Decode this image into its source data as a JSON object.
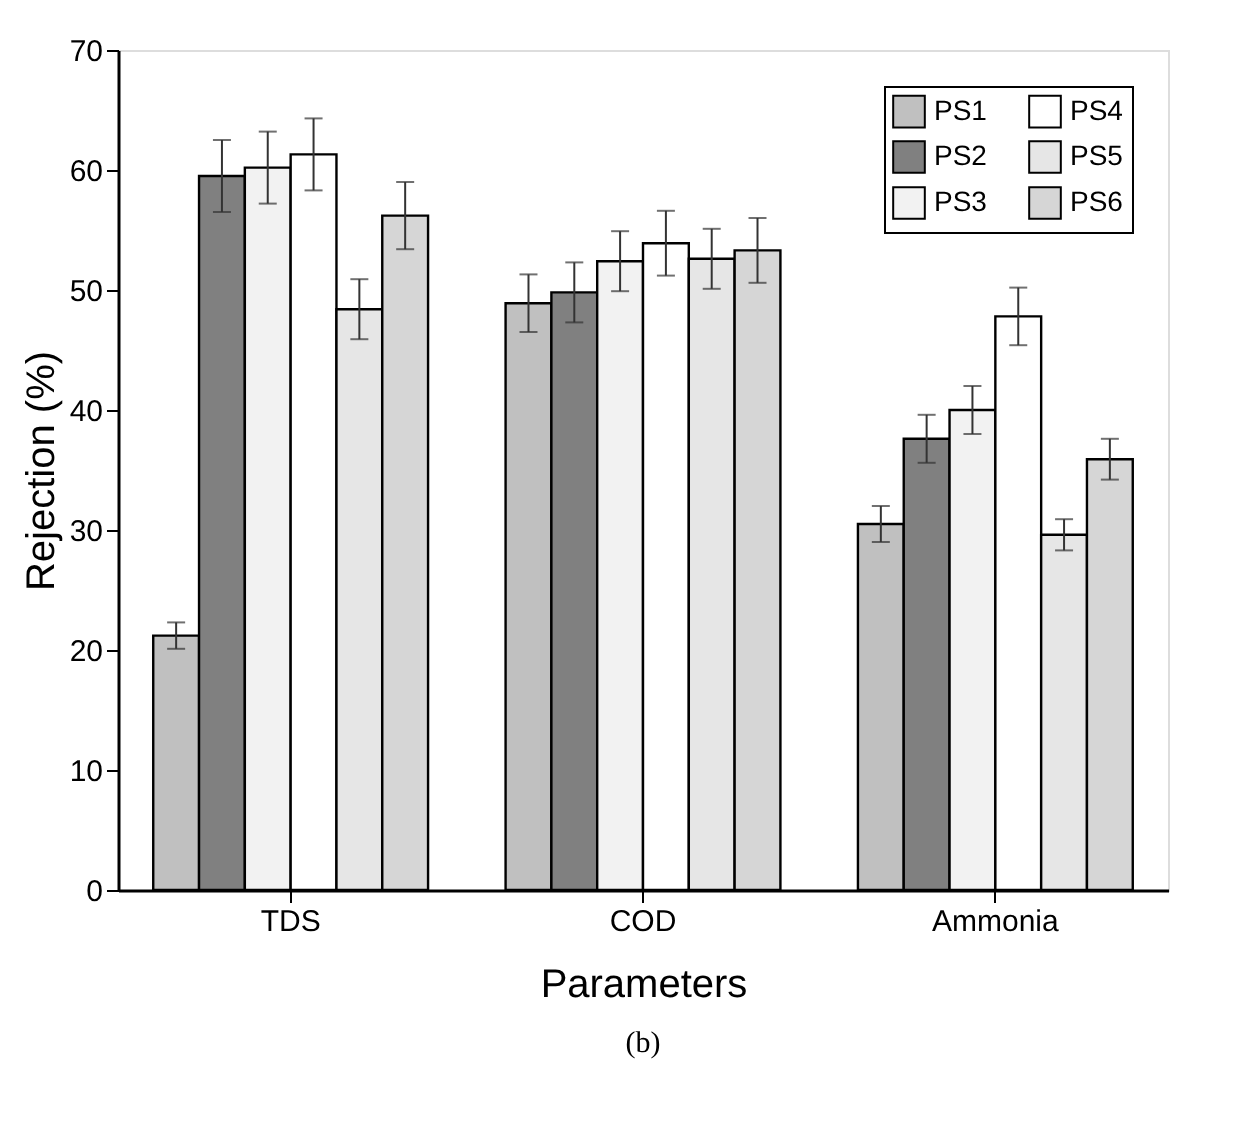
{
  "chart_data": {
    "type": "bar",
    "xlabel": "Parameters",
    "ylabel": "Rejection (%)",
    "categories": [
      "TDS",
      "COD",
      "Ammonia"
    ],
    "series": [
      {
        "name": "PS1",
        "color": "#c0c0c0",
        "values": [
          21.2,
          48.9,
          30.5
        ],
        "errors": [
          1.1,
          2.4,
          1.5
        ]
      },
      {
        "name": "PS2",
        "color": "#808080",
        "values": [
          59.5,
          49.8,
          37.6
        ],
        "errors": [
          3.0,
          2.5,
          2.0
        ]
      },
      {
        "name": "PS3",
        "color": "#f2f2f2",
        "values": [
          60.2,
          52.4,
          40.0
        ],
        "errors": [
          3.0,
          2.5,
          2.0
        ]
      },
      {
        "name": "PS4",
        "color": "#ffffff",
        "values": [
          61.3,
          53.9,
          47.8
        ],
        "errors": [
          3.0,
          2.7,
          2.4
        ]
      },
      {
        "name": "PS5",
        "color": "#e6e6e6",
        "values": [
          48.4,
          52.6,
          29.6
        ],
        "errors": [
          2.5,
          2.5,
          1.3
        ]
      },
      {
        "name": "PS6",
        "color": "#d6d6d6",
        "values": [
          56.2,
          53.3,
          35.9
        ],
        "errors": [
          2.8,
          2.7,
          1.7
        ]
      }
    ],
    "ylim": [
      0,
      70
    ],
    "yticks": [
      0,
      10,
      20,
      30,
      40,
      50,
      60,
      70
    ],
    "legend": "top right",
    "grid": false,
    "annotations": [
      "(b)"
    ]
  }
}
